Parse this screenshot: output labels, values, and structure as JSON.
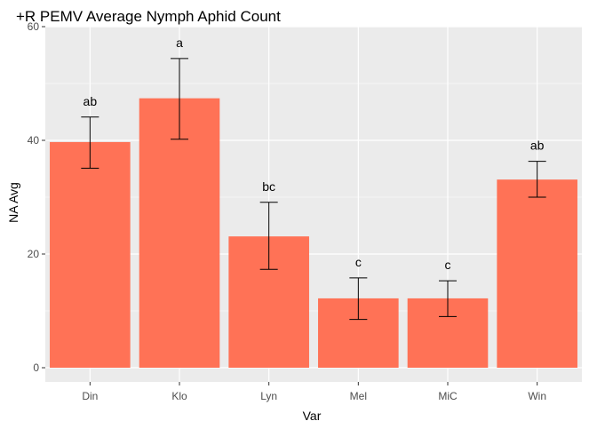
{
  "chart_data": {
    "type": "bar",
    "title": "+R PEMV Average Nymph Aphid Count",
    "xlabel": "Var",
    "ylabel": "NA Avg",
    "categories": [
      "Din",
      "Klo",
      "Lyn",
      "Mel",
      "MiC",
      "Win"
    ],
    "values": [
      39.7,
      47.4,
      23.1,
      12.2,
      12.2,
      33.1
    ],
    "error_low": [
      35.1,
      40.2,
      17.3,
      8.5,
      9.0,
      30.0
    ],
    "error_high": [
      44.1,
      54.4,
      29.1,
      15.8,
      15.3,
      36.3
    ],
    "letters": [
      "ab",
      "a",
      "bc",
      "c",
      "c",
      "ab"
    ],
    "ylim": [
      -2.5,
      60
    ],
    "yticks": [
      0,
      20,
      40,
      60
    ],
    "grid": true,
    "colors": {
      "bar": "#FF7256",
      "panel": "#EBEBEB",
      "grid": "#FFFFFF",
      "error": "#000000"
    }
  }
}
